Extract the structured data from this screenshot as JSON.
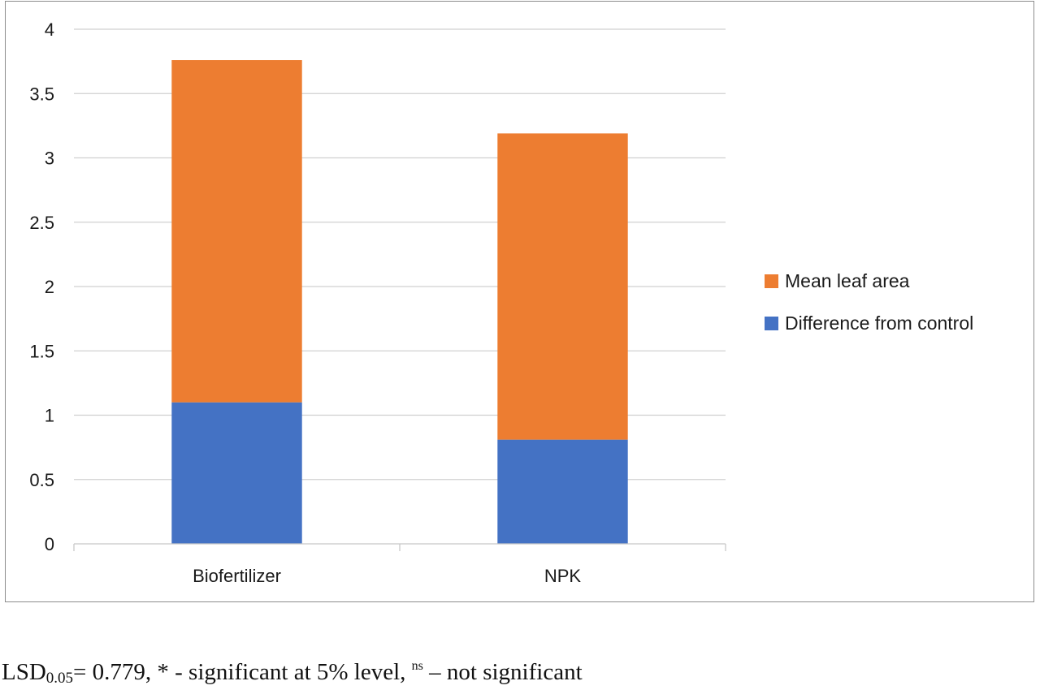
{
  "chart_data": {
    "type": "bar",
    "stacked": true,
    "categories": [
      "Biofertilizer",
      "NPK"
    ],
    "series": [
      {
        "name": "Difference from control",
        "values": [
          1.1,
          0.81
        ],
        "color": "#4472c4"
      },
      {
        "name": "Mean leaf area",
        "values": [
          2.66,
          2.38
        ],
        "color": "#ed7d31"
      }
    ],
    "ylim": [
      0,
      4
    ],
    "yticks": [
      0,
      0.5,
      1,
      1.5,
      2,
      2.5,
      3,
      3.5,
      4
    ],
    "ytick_labels": [
      "0",
      "0.5",
      "1",
      "1.5",
      "2",
      "2.5",
      "3",
      "3.5",
      "4"
    ],
    "grid": true,
    "legend_position": "right",
    "legend_order": [
      "Mean leaf area",
      "Difference from control"
    ],
    "title": "",
    "xlabel": "",
    "ylabel": ""
  },
  "footnote": {
    "lsd_prefix": "LSD",
    "lsd_subscript": "0.05",
    "lsd_value_text": "= 0.779, * - significant at 5% level, ",
    "ns_superscript": "ns",
    "ns_text": " – not significant"
  }
}
